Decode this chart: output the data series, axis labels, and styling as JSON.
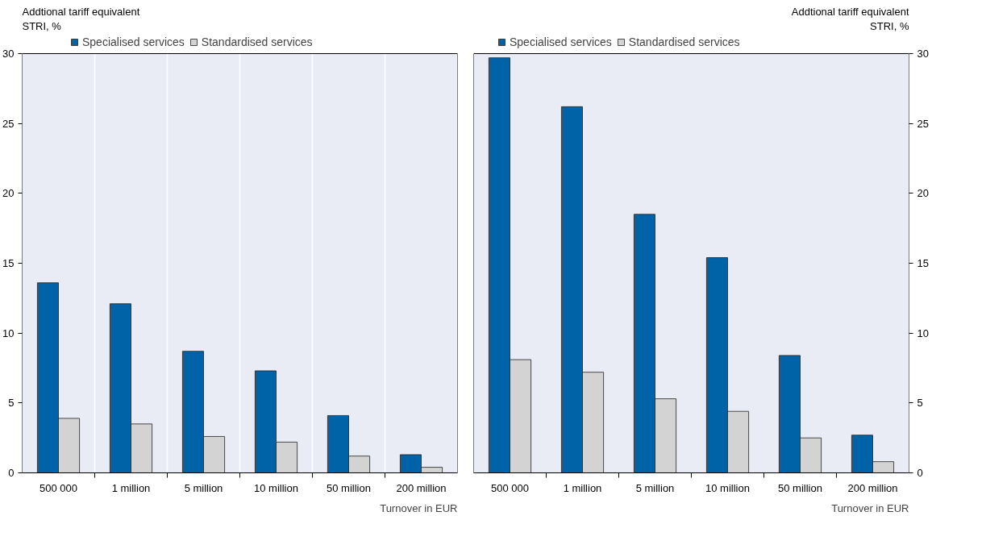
{
  "chart_data": [
    {
      "type": "bar",
      "ylabel": "Addtional tariff equivalent\nSTRI, %",
      "xlabel": "Turnover in EUR",
      "categories": [
        "500 000",
        "1 million",
        "5 million",
        "10 million",
        "50 million",
        "200 million"
      ],
      "series": [
        {
          "name": "Specialised services",
          "color": "#0063a8",
          "values": [
            13.6,
            12.1,
            8.7,
            7.3,
            4.1,
            1.3
          ]
        },
        {
          "name": "Standardised services",
          "color": "#d3d3d3",
          "values": [
            3.9,
            3.5,
            2.6,
            2.2,
            1.2,
            0.4
          ]
        }
      ],
      "ylim": [
        0,
        30
      ],
      "yticks": [
        0,
        5,
        10,
        15,
        20,
        25,
        30
      ],
      "grid": "x",
      "legend": "top"
    },
    {
      "type": "bar",
      "ylabel": "Addtional tariff equivalent\nSTRI, %",
      "xlabel": "Turnover in EUR",
      "categories": [
        "500 000",
        "1 million",
        "5 million",
        "10 million",
        "50 million",
        "200 million"
      ],
      "series": [
        {
          "name": "Specialised services",
          "color": "#0063a8",
          "values": [
            29.7,
            26.2,
            18.5,
            15.4,
            8.4,
            2.7
          ]
        },
        {
          "name": "Standardised services",
          "color": "#d3d3d3",
          "values": [
            8.1,
            7.2,
            5.3,
            4.4,
            2.5,
            0.8
          ]
        }
      ],
      "ylim": [
        0,
        30
      ],
      "yticks": [
        0,
        5,
        10,
        15,
        20,
        25,
        30
      ],
      "legend": "top"
    }
  ]
}
